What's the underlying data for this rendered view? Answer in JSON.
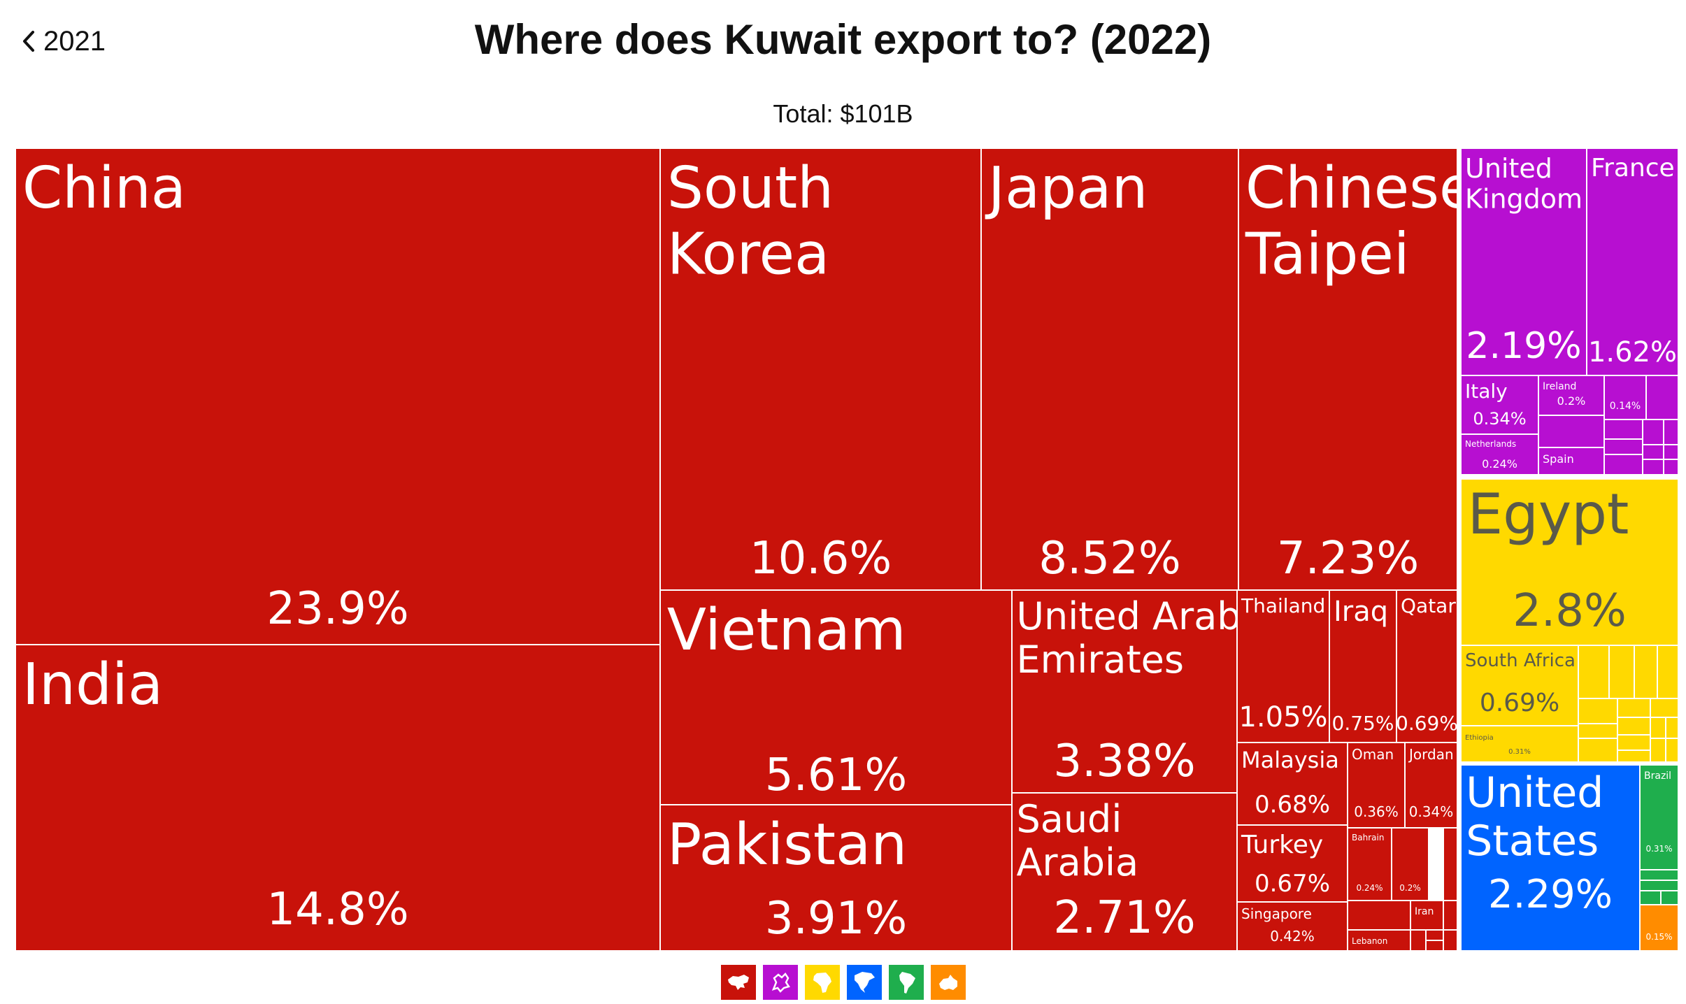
{
  "nav": {
    "back_label": "2021"
  },
  "header": {
    "title": "Where does Kuwait export to? (2022)",
    "total": "Total: $101B"
  },
  "colors": {
    "asia": "#c8120a",
    "europe": "#b70fd1",
    "africa": "#ffd900",
    "north_america": "#0064ff",
    "south_america": "#1fae4d",
    "oceania": "#ff8c00"
  },
  "legend": [
    {
      "region": "asia",
      "icon": "asia-icon"
    },
    {
      "region": "europe",
      "icon": "europe-icon"
    },
    {
      "region": "africa",
      "icon": "africa-icon"
    },
    {
      "region": "north_america",
      "icon": "north-america-icon"
    },
    {
      "region": "south_america",
      "icon": "south-america-icon"
    },
    {
      "region": "oceania",
      "icon": "oceania-icon"
    }
  ],
  "chart_data": {
    "type": "treemap",
    "title": "Where does Kuwait export to? (2022)",
    "total": "$101B",
    "items": [
      {
        "name": "China",
        "share": 23.9,
        "label": "23.9%",
        "region": "asia"
      },
      {
        "name": "India",
        "share": 14.8,
        "label": "14.8%",
        "region": "asia"
      },
      {
        "name": "South Korea",
        "share": 10.6,
        "label": "10.6%",
        "region": "asia"
      },
      {
        "name": "Japan",
        "share": 8.52,
        "label": "8.52%",
        "region": "asia"
      },
      {
        "name": "Chinese Taipei",
        "share": 7.23,
        "label": "7.23%",
        "region": "asia"
      },
      {
        "name": "Vietnam",
        "share": 5.61,
        "label": "5.61%",
        "region": "asia"
      },
      {
        "name": "Pakistan",
        "share": 3.91,
        "label": "3.91%",
        "region": "asia"
      },
      {
        "name": "United Arab Emirates",
        "share": 3.38,
        "label": "3.38%",
        "region": "asia"
      },
      {
        "name": "Saudi Arabia",
        "share": 2.71,
        "label": "2.71%",
        "region": "asia"
      },
      {
        "name": "Thailand",
        "share": 1.05,
        "label": "1.05%",
        "region": "asia"
      },
      {
        "name": "Iraq",
        "share": 0.75,
        "label": "0.75%",
        "region": "asia"
      },
      {
        "name": "Qatar",
        "share": 0.69,
        "label": "0.69%",
        "region": "asia"
      },
      {
        "name": "Malaysia",
        "share": 0.68,
        "label": "0.68%",
        "region": "asia"
      },
      {
        "name": "Turkey",
        "share": 0.67,
        "label": "0.67%",
        "region": "asia"
      },
      {
        "name": "Singapore",
        "share": 0.42,
        "label": "0.42%",
        "region": "asia"
      },
      {
        "name": "Oman",
        "share": 0.36,
        "label": "0.36%",
        "region": "asia"
      },
      {
        "name": "Jordan",
        "share": 0.34,
        "label": "0.34%",
        "region": "asia"
      },
      {
        "name": "Bahrain",
        "share": 0.24,
        "label": "0.24%",
        "region": "asia"
      },
      {
        "name": "",
        "share": 0.2,
        "label": "0.2%",
        "region": "asia"
      },
      {
        "name": "Iran",
        "share": null,
        "label": "",
        "region": "asia"
      },
      {
        "name": "Lebanon",
        "share": null,
        "label": "",
        "region": "asia"
      },
      {
        "name": "United Kingdom",
        "share": 2.19,
        "label": "2.19%",
        "region": "europe"
      },
      {
        "name": "France",
        "share": 1.62,
        "label": "1.62%",
        "region": "europe"
      },
      {
        "name": "Italy",
        "share": 0.34,
        "label": "0.34%",
        "region": "europe"
      },
      {
        "name": "Ireland",
        "share": 0.2,
        "label": "0.2%",
        "region": "europe"
      },
      {
        "name": "",
        "share": 0.14,
        "label": "0.14%",
        "region": "europe"
      },
      {
        "name": "Netherlands",
        "share": 0.24,
        "label": "0.24%",
        "region": "europe"
      },
      {
        "name": "Spain",
        "share": null,
        "label": "",
        "region": "europe"
      },
      {
        "name": "Egypt",
        "share": 2.8,
        "label": "2.8%",
        "region": "africa"
      },
      {
        "name": "South Africa",
        "share": 0.69,
        "label": "0.69%",
        "region": "africa"
      },
      {
        "name": "Ethiopia",
        "share": 0.31,
        "label": "0.31%",
        "region": "africa"
      },
      {
        "name": "United States",
        "share": 2.29,
        "label": "2.29%",
        "region": "north_america"
      },
      {
        "name": "Brazil",
        "share": 0.31,
        "label": "0.31%",
        "region": "south_america"
      },
      {
        "name": "",
        "share": 0.15,
        "label": "0.15%",
        "region": "oceania"
      }
    ]
  }
}
